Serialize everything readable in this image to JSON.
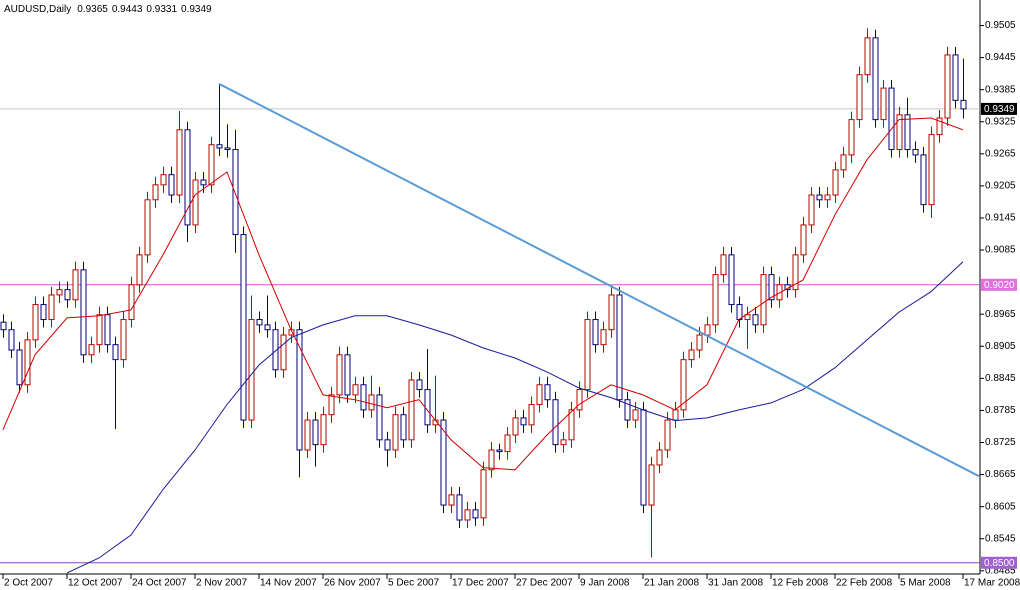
{
  "chart_data": {
    "type": "candlestick",
    "title": "AUDUSD,Daily",
    "up_color": "#c00000",
    "down_color": "#000080",
    "xlim": [
      -0.375,
      122.125
    ],
    "ylim": [
      0.8479,
      0.9549
    ],
    "yticks": [
      0.9505,
      0.9445,
      0.9385,
      0.9325,
      0.9265,
      0.9205,
      0.9145,
      0.9085,
      0.8965,
      0.8905,
      0.8845,
      0.8785,
      0.8725,
      0.8665,
      0.8605,
      0.8545,
      0.8485
    ],
    "xticks": [
      {
        "value": 0,
        "label": "2 Oct 2007"
      },
      {
        "value": 8,
        "label": "12 Oct 2007"
      },
      {
        "value": 16,
        "label": "24 Oct 2007"
      },
      {
        "value": 24,
        "label": "2 Nov 2007"
      },
      {
        "value": 32,
        "label": "14 Nov 2007"
      },
      {
        "value": 40,
        "label": "26 Nov 2007"
      },
      {
        "value": 48,
        "label": "5 Dec 2007"
      },
      {
        "value": 56,
        "label": "17 Dec 2007"
      },
      {
        "value": 64,
        "label": "27 Dec 2007"
      },
      {
        "value": 72,
        "label": "9 Jan 2008"
      },
      {
        "value": 80,
        "label": "21 Jan 2008"
      },
      {
        "value": 88,
        "label": "31 Jan 2008"
      },
      {
        "value": 96,
        "label": "12 Feb 2008"
      },
      {
        "value": 104,
        "label": "22 Feb 2008"
      },
      {
        "value": 112,
        "label": "5 Mar 2008"
      },
      {
        "value": 120,
        "label": "17 Mar 2008"
      }
    ],
    "candles": [
      [
        0.895,
        0.8965,
        0.8921,
        0.8936
      ],
      [
        0.8936,
        0.8951,
        0.8883,
        0.8898
      ],
      [
        0.8898,
        0.8913,
        0.8818,
        0.8833
      ],
      [
        0.8833,
        0.8932,
        0.8818,
        0.8917
      ],
      [
        0.8917,
        0.8998,
        0.8902,
        0.8983
      ],
      [
        0.8983,
        0.8998,
        0.894,
        0.8955
      ],
      [
        0.8955,
        0.9016,
        0.894,
        0.9001
      ],
      [
        0.9001,
        0.9026,
        0.8986,
        0.9011
      ],
      [
        0.9011,
        0.9026,
        0.8977,
        0.8992
      ],
      [
        0.8992,
        0.9063,
        0.8977,
        0.9048
      ],
      [
        0.9048,
        0.9063,
        0.8874,
        0.8889
      ],
      [
        0.8889,
        0.8923,
        0.8874,
        0.8908
      ],
      [
        0.8908,
        0.8979,
        0.8893,
        0.8964
      ],
      [
        0.8964,
        0.8979,
        0.8893,
        0.8908
      ],
      [
        0.8908,
        0.8923,
        0.875,
        0.888
      ],
      [
        0.888,
        0.897,
        0.8865,
        0.8955
      ],
      [
        0.8955,
        0.9035,
        0.894,
        0.902
      ],
      [
        0.902,
        0.9091,
        0.9005,
        0.9076
      ],
      [
        0.9076,
        0.9194,
        0.9061,
        0.9179
      ],
      [
        0.9179,
        0.9222,
        0.9164,
        0.9207
      ],
      [
        0.9207,
        0.9241,
        0.9192,
        0.9226
      ],
      [
        0.9226,
        0.9241,
        0.9173,
        0.9188
      ],
      [
        0.9188,
        0.9345,
        0.9173,
        0.931
      ],
      [
        0.931,
        0.9325,
        0.91,
        0.9132
      ],
      [
        0.9132,
        0.9231,
        0.9117,
        0.9216
      ],
      [
        0.9216,
        0.9231,
        0.9192,
        0.9207
      ],
      [
        0.9207,
        0.9297,
        0.9192,
        0.9282
      ],
      [
        0.9282,
        0.9396,
        0.9261,
        0.9276
      ],
      [
        0.9276,
        0.932,
        0.9258,
        0.9273
      ],
      [
        0.9273,
        0.931,
        0.908,
        0.9114
      ],
      [
        0.9114,
        0.9129,
        0.8752,
        0.8767
      ],
      [
        0.8767,
        0.9,
        0.8752,
        0.8955
      ],
      [
        0.8955,
        0.897,
        0.893,
        0.8945
      ],
      [
        0.8945,
        0.9,
        0.8921,
        0.8936
      ],
      [
        0.8936,
        0.8951,
        0.8846,
        0.8861
      ],
      [
        0.8861,
        0.8941,
        0.8846,
        0.8926
      ],
      [
        0.8926,
        0.8951,
        0.8911,
        0.8936
      ],
      [
        0.8936,
        0.8951,
        0.866,
        0.8711
      ],
      [
        0.8711,
        0.8782,
        0.8696,
        0.8767
      ],
      [
        0.8767,
        0.8782,
        0.868,
        0.8721
      ],
      [
        0.8721,
        0.8792,
        0.8706,
        0.8777
      ],
      [
        0.8777,
        0.8829,
        0.8762,
        0.8814
      ],
      [
        0.8814,
        0.8904,
        0.8799,
        0.8889
      ],
      [
        0.8889,
        0.8904,
        0.8799,
        0.8814
      ],
      [
        0.8814,
        0.8848,
        0.8799,
        0.8833
      ],
      [
        0.8833,
        0.8848,
        0.8771,
        0.8786
      ],
      [
        0.8786,
        0.885,
        0.8771,
        0.8814
      ],
      [
        0.8814,
        0.8829,
        0.8715,
        0.873
      ],
      [
        0.873,
        0.8745,
        0.868,
        0.8711
      ],
      [
        0.8711,
        0.8792,
        0.8696,
        0.8777
      ],
      [
        0.8777,
        0.8792,
        0.8715,
        0.873
      ],
      [
        0.873,
        0.8857,
        0.8715,
        0.8842
      ],
      [
        0.8842,
        0.8857,
        0.8809,
        0.8824
      ],
      [
        0.8824,
        0.89,
        0.8743,
        0.8758
      ],
      [
        0.8758,
        0.885,
        0.8743,
        0.8767
      ],
      [
        0.8767,
        0.8782,
        0.8593,
        0.8608
      ],
      [
        0.8608,
        0.8642,
        0.8593,
        0.8627
      ],
      [
        0.8627,
        0.8642,
        0.8565,
        0.858
      ],
      [
        0.858,
        0.8614,
        0.8565,
        0.8599
      ],
      [
        0.8599,
        0.8614,
        0.8569,
        0.8584
      ],
      [
        0.8584,
        0.8689,
        0.8569,
        0.8674
      ],
      [
        0.8674,
        0.8726,
        0.8659,
        0.8711
      ],
      [
        0.8711,
        0.8723,
        0.8693,
        0.8708
      ],
      [
        0.8708,
        0.8754,
        0.8693,
        0.8739
      ],
      [
        0.8739,
        0.8786,
        0.8724,
        0.8771
      ],
      [
        0.8771,
        0.8786,
        0.8743,
        0.8758
      ],
      [
        0.8758,
        0.8811,
        0.8743,
        0.8796
      ],
      [
        0.8796,
        0.8848,
        0.8781,
        0.8833
      ],
      [
        0.8833,
        0.8848,
        0.879,
        0.8805
      ],
      [
        0.8805,
        0.882,
        0.8706,
        0.8721
      ],
      [
        0.8721,
        0.8745,
        0.8706,
        0.873
      ],
      [
        0.873,
        0.8801,
        0.8715,
        0.8786
      ],
      [
        0.8786,
        0.8839,
        0.8771,
        0.8824
      ],
      [
        0.8824,
        0.897,
        0.8809,
        0.8955
      ],
      [
        0.8955,
        0.897,
        0.8893,
        0.8908
      ],
      [
        0.8908,
        0.8951,
        0.8893,
        0.8936
      ],
      [
        0.8936,
        0.9016,
        0.8921,
        0.9001
      ],
      [
        0.9001,
        0.9016,
        0.879,
        0.8805
      ],
      [
        0.8805,
        0.882,
        0.8752,
        0.8767
      ],
      [
        0.8767,
        0.8801,
        0.8752,
        0.8786
      ],
      [
        0.8786,
        0.8801,
        0.8593,
        0.8608
      ],
      [
        0.8608,
        0.8698,
        0.851,
        0.8683
      ],
      [
        0.8683,
        0.8726,
        0.8668,
        0.8711
      ],
      [
        0.8711,
        0.8782,
        0.8696,
        0.8767
      ],
      [
        0.8767,
        0.8801,
        0.8752,
        0.8786
      ],
      [
        0.8786,
        0.8895,
        0.8771,
        0.888
      ],
      [
        0.888,
        0.8913,
        0.8865,
        0.8898
      ],
      [
        0.8898,
        0.8941,
        0.8883,
        0.8926
      ],
      [
        0.8926,
        0.896,
        0.8911,
        0.8945
      ],
      [
        0.8945,
        0.9054,
        0.893,
        0.9039
      ],
      [
        0.9039,
        0.9091,
        0.9024,
        0.9076
      ],
      [
        0.9076,
        0.9091,
        0.8968,
        0.8983
      ],
      [
        0.8983,
        0.8998,
        0.894,
        0.8955
      ],
      [
        0.8955,
        0.8979,
        0.89,
        0.8964
      ],
      [
        0.8964,
        0.8979,
        0.893,
        0.8945
      ],
      [
        0.8945,
        0.9054,
        0.893,
        0.9039
      ],
      [
        0.9039,
        0.9054,
        0.8977,
        0.8992
      ],
      [
        0.8992,
        0.9035,
        0.8977,
        0.902
      ],
      [
        0.902,
        0.9035,
        0.8996,
        0.9011
      ],
      [
        0.9011,
        0.9091,
        0.8996,
        0.9076
      ],
      [
        0.9076,
        0.9147,
        0.9061,
        0.9132
      ],
      [
        0.9132,
        0.9203,
        0.9117,
        0.9188
      ],
      [
        0.9188,
        0.9203,
        0.9164,
        0.9179
      ],
      [
        0.9179,
        0.9203,
        0.9164,
        0.9188
      ],
      [
        0.9188,
        0.925,
        0.9173,
        0.9235
      ],
      [
        0.9235,
        0.9278,
        0.922,
        0.9263
      ],
      [
        0.9263,
        0.9344,
        0.9248,
        0.9329
      ],
      [
        0.9329,
        0.9428,
        0.9314,
        0.9413
      ],
      [
        0.9413,
        0.95,
        0.9398,
        0.9482
      ],
      [
        0.9482,
        0.9497,
        0.9314,
        0.9329
      ],
      [
        0.9329,
        0.9403,
        0.9314,
        0.9388
      ],
      [
        0.9388,
        0.9403,
        0.9258,
        0.9273
      ],
      [
        0.9273,
        0.9353,
        0.9258,
        0.9338
      ],
      [
        0.9338,
        0.937,
        0.9258,
        0.9273
      ],
      [
        0.9273,
        0.9288,
        0.9248,
        0.9263
      ],
      [
        0.9263,
        0.9278,
        0.9155,
        0.917
      ],
      [
        0.917,
        0.9316,
        0.9145,
        0.9301
      ],
      [
        0.9301,
        0.9347,
        0.9286,
        0.9332
      ],
      [
        0.9332,
        0.9465,
        0.9317,
        0.945
      ],
      [
        0.945,
        0.9465,
        0.935,
        0.9365
      ],
      [
        0.9365,
        0.9443,
        0.9331,
        0.9349
      ]
    ],
    "series": [
      {
        "color": "#d00000",
        "x": [
          0,
          4,
          8,
          12,
          16,
          20,
          24,
          28,
          32,
          36,
          40,
          44,
          48,
          52,
          56,
          60,
          64,
          68,
          72,
          76,
          80,
          84,
          88,
          92,
          96,
          100,
          104,
          108,
          112,
          116,
          120
        ],
        "values": [
          0.8749,
          0.8889,
          0.8958,
          0.8962,
          0.8973,
          0.9076,
          0.9188,
          0.9231,
          0.9076,
          0.8936,
          0.8814,
          0.8805,
          0.879,
          0.8805,
          0.873,
          0.8678,
          0.8674,
          0.8739,
          0.8796,
          0.8833,
          0.8814,
          0.8786,
          0.8833,
          0.8955,
          0.8996,
          0.9029,
          0.9151,
          0.9254,
          0.9329,
          0.9332,
          0.931
        ]
      },
      {
        "color": "#1a1a9c",
        "x": [
          8,
          12,
          16,
          20,
          24,
          28,
          32,
          36,
          40,
          44,
          48,
          52,
          56,
          60,
          64,
          68,
          72,
          76,
          80,
          84,
          88,
          92,
          96,
          100,
          104,
          108,
          112,
          116,
          120
        ],
        "values": [
          0.8481,
          0.8509,
          0.8552,
          0.8637,
          0.8711,
          0.8796,
          0.887,
          0.8921,
          0.8945,
          0.8962,
          0.8962,
          0.8945,
          0.8926,
          0.8902,
          0.8883,
          0.8857,
          0.8827,
          0.8809,
          0.8786,
          0.8766,
          0.8771,
          0.8786,
          0.8799,
          0.8824,
          0.8865,
          0.8917,
          0.8969,
          0.9007,
          0.9063
        ]
      }
    ],
    "trendline": {
      "color": "#5b9bd5",
      "x": [
        27,
        122
      ],
      "values": [
        0.9396,
        0.8662
      ]
    },
    "levels": [
      {
        "price": 0.9349,
        "color": "#c8c8c8",
        "box": "#000000"
      },
      {
        "price": {
          "value": 0.902,
          "label": "0.9020"
        },
        "color": "#d050d0",
        "box": "#e070e0"
      },
      {
        "price": {
          "value": 0.85,
          "label": "0.8500"
        },
        "color": "#9040c0",
        "box": "#a060d0"
      }
    ]
  }
}
